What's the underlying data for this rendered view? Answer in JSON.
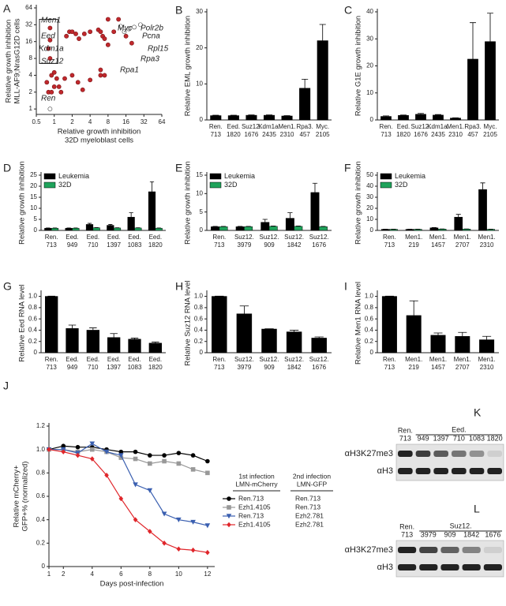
{
  "chart_data": [
    {
      "type": "scatter",
      "panel": "A",
      "xscale": "log",
      "yscale": "log",
      "xlabel": [
        "Relative growth inhibition",
        "32D myeloblast cells"
      ],
      "ylabel": [
        "Relative growth inhibition",
        "MLL-AF9;NrasG12D cells"
      ],
      "xlim": [
        0.5,
        64
      ],
      "ylim": [
        0.8,
        64
      ],
      "xticks": [
        0.5,
        1,
        2,
        4,
        8,
        16,
        32,
        64
      ],
      "yticks": [
        1,
        2,
        4,
        8,
        16,
        32,
        64
      ],
      "series": [
        {
          "color": "#c0282c",
          "x": [
            0.85,
            0.85,
            0.8,
            0.85,
            0.8,
            0.75,
            0.9,
            1,
            1.1,
            1,
            0.9,
            1.3,
            1.2,
            1.5,
            2,
            2.5,
            3,
            4,
            6,
            6,
            7,
            1.6,
            1.8,
            2,
            2.3,
            2.6,
            3.2,
            4,
            5.5,
            6,
            6.5,
            7,
            8,
            8,
            10,
            12,
            16,
            20
          ],
          "values": [
            28,
            17,
            12,
            8,
            2,
            3,
            4,
            4.5,
            3.5,
            2.5,
            2,
            2,
            2.5,
            3.5,
            4,
            3,
            2.2,
            3.3,
            5,
            4,
            4,
            20,
            24,
            24,
            22,
            18,
            22,
            24,
            26,
            24,
            20,
            18,
            14,
            40,
            24,
            40,
            20,
            15
          ]
        },
        {
          "color": "#ffffff",
          "x": [
            0.85,
            13,
            15,
            18,
            22,
            28
          ],
          "values": [
            1,
            30,
            24,
            27,
            29,
            32
          ]
        }
      ],
      "annotations": [
        "Men1",
        "Eed",
        "Kdm1a",
        "Suz12",
        "Ren",
        "Myc",
        "Polr2b",
        "Pcna",
        "Rpl15",
        "Rpa3",
        "Rpa1"
      ]
    },
    {
      "type": "bar",
      "panel": "B",
      "ylabel": [
        "Relative EML growth inhibition"
      ],
      "color": "#000000",
      "categories": [
        [
          "Ren.",
          "713"
        ],
        [
          "Eed.",
          "1820"
        ],
        [
          "Suz12.",
          "1676"
        ],
        [
          "Kdm1a.",
          "2435"
        ],
        [
          "Men1.",
          "2310"
        ],
        [
          "Rpa3.",
          "457"
        ],
        [
          "Myc.",
          "2105"
        ]
      ],
      "values": [
        1.2,
        1.2,
        1.3,
        1.3,
        1.1,
        8.8,
        22
      ],
      "errors": [
        0.1,
        0.1,
        0.1,
        0.1,
        0.1,
        2.5,
        4.5
      ],
      "ylim": [
        0,
        30
      ],
      "yticks": [
        0,
        10,
        20,
        30
      ]
    },
    {
      "type": "bar",
      "panel": "C",
      "ylabel": [
        "Relative G1E growth inhibition"
      ],
      "color": "#000000",
      "categories": [
        [
          "Ren.",
          "713"
        ],
        [
          "Eed.",
          "1820"
        ],
        [
          "Suz12.",
          "1676"
        ],
        [
          "Kdm1a.",
          "2435"
        ],
        [
          "Men1.",
          "2310"
        ],
        [
          "Rpa3.",
          "457"
        ],
        [
          "Myc.",
          "2105"
        ]
      ],
      "values": [
        1.3,
        1.7,
        2.1,
        1.8,
        0.7,
        22.5,
        29
      ],
      "errors": [
        0.2,
        0.1,
        0.3,
        0.2,
        0.1,
        13.5,
        10.5
      ],
      "ylim": [
        0,
        40
      ],
      "yticks": [
        0,
        10,
        20,
        30,
        40
      ]
    },
    {
      "type": "bar",
      "panel": "D",
      "ylabel": [
        "Relative growth inhibition"
      ],
      "categories": [
        [
          "Ren.",
          "713"
        ],
        [
          "Eed.",
          "949"
        ],
        [
          "Eed.",
          "710"
        ],
        [
          "Eed.",
          "1397"
        ],
        [
          "Eed.",
          "1083"
        ],
        [
          "Eed.",
          "1820"
        ]
      ],
      "series": [
        {
          "name": "Leukemia",
          "color": "#000000",
          "values": [
            1,
            1,
            2.7,
            2.3,
            6,
            17.5
          ],
          "errors": [
            0.1,
            0.1,
            0.5,
            0.4,
            2,
            4.5
          ]
        },
        {
          "name": "32D",
          "color": "#1fa35b",
          "values": [
            1,
            1,
            1.2,
            1.1,
            1.1,
            1
          ],
          "errors": [
            0.1,
            0.1,
            0.1,
            0.1,
            0.1,
            0.1
          ]
        }
      ],
      "ylim": [
        0,
        25
      ],
      "yticks": [
        0,
        5,
        10,
        15,
        20,
        25
      ]
    },
    {
      "type": "bar",
      "panel": "E",
      "ylabel": [
        "Relative growth inhibition"
      ],
      "categories": [
        [
          "Ren.",
          "713"
        ],
        [
          "Suz12.",
          "3979"
        ],
        [
          "Suz12.",
          "909"
        ],
        [
          "Suz12.",
          "1842"
        ],
        [
          "Suz12.",
          "1676"
        ]
      ],
      "series": [
        {
          "name": "Leukemia",
          "color": "#000000",
          "values": [
            1,
            1,
            2.2,
            3.3,
            10.3
          ],
          "errors": [
            0.1,
            0.1,
            0.8,
            1.5,
            2.5
          ]
        },
        {
          "name": "32D",
          "color": "#1fa35b",
          "values": [
            1,
            1,
            1.1,
            1.1,
            1
          ],
          "errors": [
            0.1,
            0.1,
            0.1,
            0.1,
            0.1
          ]
        }
      ],
      "ylim": [
        0,
        15
      ],
      "yticks": [
        0,
        5,
        10,
        15
      ]
    },
    {
      "type": "bar",
      "panel": "F",
      "ylabel": [
        "Relative growth inhibition"
      ],
      "categories": [
        [
          "Ren.",
          "713"
        ],
        [
          "Men1.",
          "219"
        ],
        [
          "Men1.",
          "1457"
        ],
        [
          "Men1.",
          "2707"
        ],
        [
          "Men1.",
          "2310"
        ]
      ],
      "series": [
        {
          "name": "Leukemia",
          "color": "#000000",
          "values": [
            1,
            1,
            2.3,
            12,
            37
          ],
          "errors": [
            0.1,
            0.1,
            0.3,
            2.5,
            6
          ]
        },
        {
          "name": "32D",
          "color": "#1fa35b",
          "values": [
            1,
            1,
            1.2,
            1.2,
            1
          ],
          "errors": [
            0.1,
            0.1,
            0.1,
            0.1,
            0.1
          ]
        }
      ],
      "ylim": [
        0,
        50
      ],
      "yticks": [
        0,
        10,
        20,
        30,
        40,
        50
      ]
    },
    {
      "type": "bar",
      "panel": "G",
      "ylabel": [
        "Relative Eed RNA level"
      ],
      "color": "#000000",
      "categories": [
        [
          "Ren.",
          "713"
        ],
        [
          "Eed.",
          "949"
        ],
        [
          "Eed.",
          "710"
        ],
        [
          "Eed.",
          "1397"
        ],
        [
          "Eed.",
          "1083"
        ],
        [
          "Eed.",
          "1820"
        ]
      ],
      "values": [
        1,
        0.43,
        0.4,
        0.27,
        0.24,
        0.17
      ],
      "errors": [
        0.005,
        0.06,
        0.04,
        0.07,
        0.02,
        0.02
      ],
      "ylim": [
        0,
        1.05
      ],
      "yticks": [
        0,
        0.2,
        0.4,
        0.6,
        0.8,
        {
          "value": 1,
          "label": "1.0"
        }
      ]
    },
    {
      "type": "bar",
      "panel": "H",
      "ylabel": [
        "Relative Suz12 RNA level"
      ],
      "color": "#000000",
      "categories": [
        [
          "Ren.",
          "713"
        ],
        [
          "Suz12.",
          "3979"
        ],
        [
          "Suz12.",
          "909"
        ],
        [
          "Suz12.",
          "1842"
        ],
        [
          "Suz12.",
          "1676"
        ]
      ],
      "values": [
        1,
        0.69,
        0.42,
        0.37,
        0.26
      ],
      "errors": [
        0.005,
        0.14,
        0.005,
        0.03,
        0.02
      ],
      "ylim": [
        0,
        1.05
      ],
      "yticks": [
        0,
        0.2,
        0.4,
        0.6,
        0.8,
        {
          "value": 1,
          "label": "1.0"
        }
      ]
    },
    {
      "type": "bar",
      "panel": "I",
      "ylabel": [
        "Relative Men1 RNA level"
      ],
      "color": "#000000",
      "categories": [
        [
          "Ren.",
          "713"
        ],
        [
          "Men1.",
          "219"
        ],
        [
          "Men1.",
          "1457"
        ],
        [
          "Men1.",
          "2707"
        ],
        [
          "Men1.",
          "2310"
        ]
      ],
      "values": [
        1,
        0.66,
        0.31,
        0.29,
        0.23
      ],
      "errors": [
        0.005,
        0.26,
        0.04,
        0.07,
        0.06
      ],
      "ylim": [
        0,
        1.05
      ],
      "yticks": [
        0,
        0.2,
        0.4,
        0.6,
        0.8,
        {
          "value": 1,
          "label": "1.0"
        }
      ]
    },
    {
      "type": "line",
      "panel": "J",
      "xlabel": [
        "Days post-infection"
      ],
      "ylabel": [
        "Relative mCherry+",
        "GFP+% (normalized)"
      ],
      "legend_headers": [
        [
          "1st infection",
          "LMN-mCherry"
        ],
        [
          "2nd infection",
          "LMN-GFP"
        ]
      ],
      "x": [
        1,
        2,
        3,
        4,
        5,
        6,
        7,
        8,
        9,
        10,
        11,
        12
      ],
      "xlim": [
        1,
        12.5
      ],
      "xticks": [
        1,
        2,
        4,
        6,
        8,
        10,
        12
      ],
      "ylim": [
        0,
        1.2
      ],
      "yticks": [
        0,
        0.2,
        0.4,
        0.6,
        0.8,
        {
          "value": 1,
          "label": "1.0"
        },
        1.2
      ],
      "series": [
        {
          "name": "Ren.713",
          "second": "Ren.713",
          "color": "#000000",
          "marker": "o",
          "values": [
            1,
            1.03,
            1.02,
            1.02,
            1,
            0.98,
            0.98,
            0.95,
            0.95,
            0.97,
            0.95,
            0.9
          ]
        },
        {
          "name": "Ezh1.4105",
          "second": "Ren.713",
          "color": "#999999",
          "marker": "s",
          "values": [
            1,
            1,
            0.98,
            1,
            0.98,
            0.93,
            0.92,
            0.88,
            0.9,
            0.88,
            0.83,
            0.8
          ]
        },
        {
          "name": "Ren.713",
          "second": "Ezh2.781",
          "color": "#3a5fb0",
          "marker": "v",
          "values": [
            1,
            1,
            0.97,
            1.05,
            0.98,
            0.95,
            0.7,
            0.65,
            0.45,
            0.4,
            0.38,
            0.35
          ]
        },
        {
          "name": "Ezh1.4105",
          "second": "Ezh2.781",
          "color": "#e0262b",
          "marker": "D",
          "values": [
            1,
            0.98,
            0.95,
            0.92,
            0.78,
            0.58,
            0.4,
            0.3,
            0.2,
            0.15,
            0.14,
            0.12
          ]
        }
      ]
    }
  ],
  "blots": [
    {
      "panel": "K",
      "lead": [
        "Ren.",
        "713"
      ],
      "group": "Eed.",
      "lanes": [
        "949",
        "1397",
        "710",
        "1083",
        "1820"
      ],
      "rows": [
        "αH3K27me3",
        "αH3"
      ]
    },
    {
      "panel": "L",
      "lead": [
        "Ren.",
        "713"
      ],
      "group": "Suz12.",
      "lanes": [
        "3979",
        "909",
        "1842",
        "1676"
      ],
      "rows": [
        "αH3K27me3",
        "αH3"
      ]
    }
  ]
}
